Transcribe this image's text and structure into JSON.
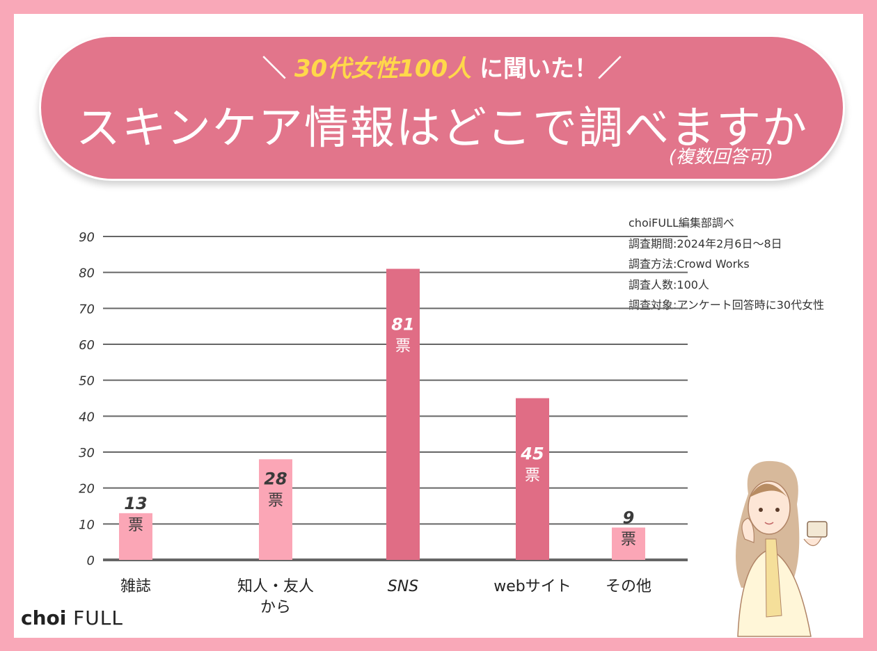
{
  "header": {
    "prefix": "＼",
    "highlight": "30代女性100人",
    "suffix": "に聞いた！／",
    "title": "スキンケア情報はどこで調べますか",
    "subtitle": "(複数回答可)"
  },
  "notes": [
    "choiFULL編集部調べ",
    "調査期間:2024年2月6日〜8日",
    "調査方法:Crowd Works",
    "調査人数:100人",
    "調査対象:アンケート回答時に30代女性"
  ],
  "logo": {
    "choi": "choi",
    "full": "FULL"
  },
  "colors": {
    "light_bar": "#fba6b6",
    "dark_bar": "#e06d85",
    "banner": "#e2758b",
    "grid": "#666666"
  },
  "chart_data": {
    "type": "bar",
    "categories": [
      "雑誌",
      "知人・友人から",
      "SNS",
      "webサイト",
      "その他"
    ],
    "values": [
      13,
      28,
      81,
      45,
      9
    ],
    "data_labels": [
      "13",
      "28",
      "81",
      "45",
      "9"
    ],
    "unit": "票",
    "yticks": [
      0,
      10,
      20,
      30,
      40,
      50,
      60,
      70,
      80,
      90
    ],
    "ylim": [
      0,
      90
    ],
    "grid": true,
    "highlighted": [
      2,
      3
    ]
  }
}
